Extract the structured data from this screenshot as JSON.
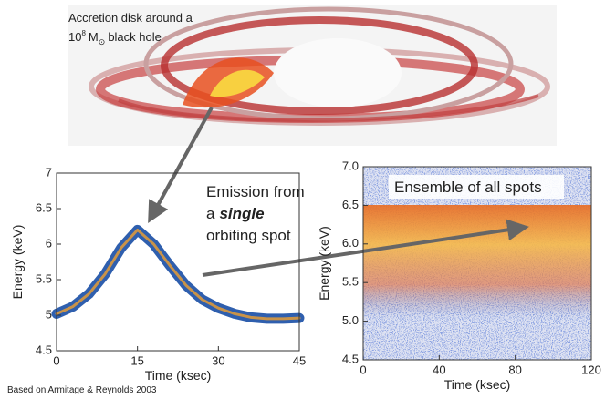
{
  "disk_caption": {
    "line1": "Accretion disk around a",
    "mass_base": "10",
    "mass_exp": "8",
    "mass_unit": "M",
    "mass_sub": "⊙",
    "line2_rest": "black hole"
  },
  "chart_data": [
    {
      "type": "line",
      "x_label": "Time (ksec)",
      "y_label": "Energy (keV)",
      "annotation": {
        "line1": "Emission from",
        "line2_prefix": "a",
        "line2_emph": "single",
        "line3": "orbiting spot"
      },
      "x": [
        0,
        3,
        6,
        9,
        12,
        15,
        18,
        21,
        24,
        27,
        30,
        33,
        36,
        39,
        42,
        45
      ],
      "values": [
        5.02,
        5.12,
        5.3,
        5.58,
        5.95,
        6.2,
        6.0,
        5.7,
        5.42,
        5.22,
        5.1,
        5.02,
        4.97,
        4.95,
        4.95,
        4.96
      ],
      "color": "#2f5fae",
      "xlim": [
        0,
        45
      ],
      "xticks": [
        0,
        15,
        30,
        45
      ],
      "ylim": [
        4.5,
        7
      ],
      "yticks": [
        4.5,
        5,
        5.5,
        6,
        6.5,
        7
      ]
    },
    {
      "type": "density",
      "x_label": "Time (ksec)",
      "y_label": "Energy (keV)",
      "annotation": "Ensemble of all spots",
      "xlim": [
        0,
        120
      ],
      "xticks": [
        0,
        40,
        80,
        120
      ],
      "ylim": [
        4.5,
        7.0
      ],
      "yticks": [
        4.5,
        {
          "value": 5,
          "label": "5.0"
        },
        5.5,
        {
          "value": 6,
          "label": "6.0"
        },
        6.5,
        {
          "value": 7,
          "label": "7.0"
        }
      ]
    }
  ],
  "credit": "Based on Armitage & Reynolds 2003"
}
